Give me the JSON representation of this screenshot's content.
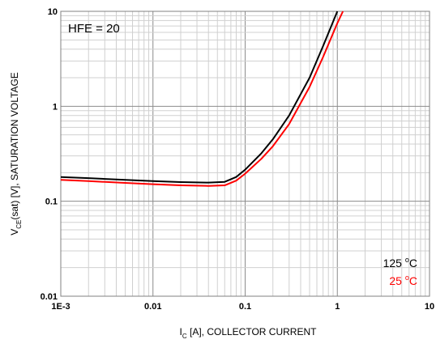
{
  "chart_data": {
    "type": "line",
    "xscale": "log",
    "yscale": "log",
    "xlim": [
      0.001,
      10
    ],
    "ylim": [
      0.01,
      10
    ],
    "grid": true,
    "x_ticks": [
      {
        "value": 0.001,
        "label": "1E-3"
      },
      {
        "value": 0.01,
        "label": "0.01"
      },
      {
        "value": 0.1,
        "label": "0.1"
      },
      {
        "value": 1,
        "label": "1"
      },
      {
        "value": 10,
        "label": "10"
      }
    ],
    "y_ticks": [
      {
        "value": 0.01,
        "label": "0.01"
      },
      {
        "value": 0.1,
        "label": "0.1"
      },
      {
        "value": 1,
        "label": "1"
      },
      {
        "value": 10,
        "label": "10"
      }
    ],
    "xlabel": {
      "main": "I",
      "sub": "C",
      "rest": " [A], COLLECTOR CURRENT"
    },
    "ylabel": {
      "main": "V",
      "sub": "CE",
      "rest": "(sat) [V], SATURATION VOLTAGE"
    },
    "annotation": "HFE = 20",
    "legend_position": "bottom-right",
    "series": [
      {
        "name": "125 °C",
        "name_main": "125 ",
        "name_deg": "o",
        "name_unit": "C",
        "color": "#000000",
        "x": [
          0.001,
          0.002,
          0.005,
          0.01,
          0.02,
          0.04,
          0.06,
          0.08,
          0.1,
          0.15,
          0.2,
          0.3,
          0.5,
          0.7,
          1.0
        ],
        "y": [
          0.18,
          0.175,
          0.168,
          0.163,
          0.159,
          0.157,
          0.16,
          0.18,
          0.215,
          0.32,
          0.45,
          0.8,
          2.0,
          4.3,
          10
        ]
      },
      {
        "name": "25 °C",
        "name_main": "25 ",
        "name_deg": "o",
        "name_unit": "C",
        "color": "#ff0000",
        "x": [
          0.001,
          0.002,
          0.005,
          0.01,
          0.02,
          0.04,
          0.06,
          0.08,
          0.1,
          0.15,
          0.2,
          0.3,
          0.5,
          0.7,
          1.0,
          1.15
        ],
        "y": [
          0.168,
          0.163,
          0.156,
          0.151,
          0.147,
          0.145,
          0.147,
          0.165,
          0.195,
          0.28,
          0.38,
          0.65,
          1.6,
          3.3,
          7.5,
          10
        ]
      }
    ]
  }
}
